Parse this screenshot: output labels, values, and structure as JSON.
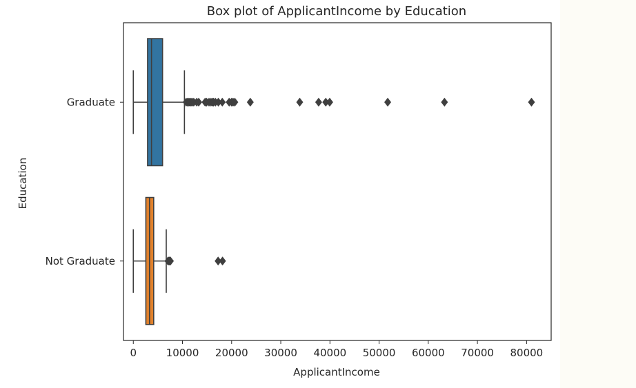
{
  "chart_data": {
    "type": "boxplot",
    "orientation": "horizontal",
    "title": "Box plot of ApplicantIncome by Education",
    "xlabel": "ApplicantIncome",
    "ylabel": "Education",
    "xlim": [
      -2000,
      85000
    ],
    "xticks": [
      0,
      10000,
      20000,
      30000,
      40000,
      50000,
      60000,
      70000,
      80000
    ],
    "xtick_labels": [
      "0",
      "10000",
      "20000",
      "30000",
      "40000",
      "50000",
      "60000",
      "70000",
      "80000"
    ],
    "grid": false,
    "legend": "none",
    "categories": [
      "Graduate",
      "Not Graduate"
    ],
    "series": [
      {
        "category": "Graduate",
        "color": "#3274a1",
        "whisker_low": 0,
        "q1": 2900,
        "median": 3700,
        "q3": 5950,
        "whisker_high": 10400,
        "outliers": [
          10750,
          11000,
          11300,
          11500,
          11750,
          12000,
          12300,
          12900,
          13300,
          14600,
          14900,
          15400,
          15800,
          16100,
          16300,
          16700,
          17300,
          18100,
          19500,
          20000,
          20300,
          20650,
          23800,
          33850,
          37700,
          39150,
          39950,
          51750,
          63300,
          81000
        ]
      },
      {
        "category": "Not Graduate",
        "color": "#e1812c",
        "whisker_low": 0,
        "q1": 2550,
        "median": 3300,
        "q3": 4150,
        "whisker_high": 6700,
        "outliers": [
          7050,
          7250,
          7400,
          7550,
          17250,
          18150
        ]
      }
    ]
  }
}
